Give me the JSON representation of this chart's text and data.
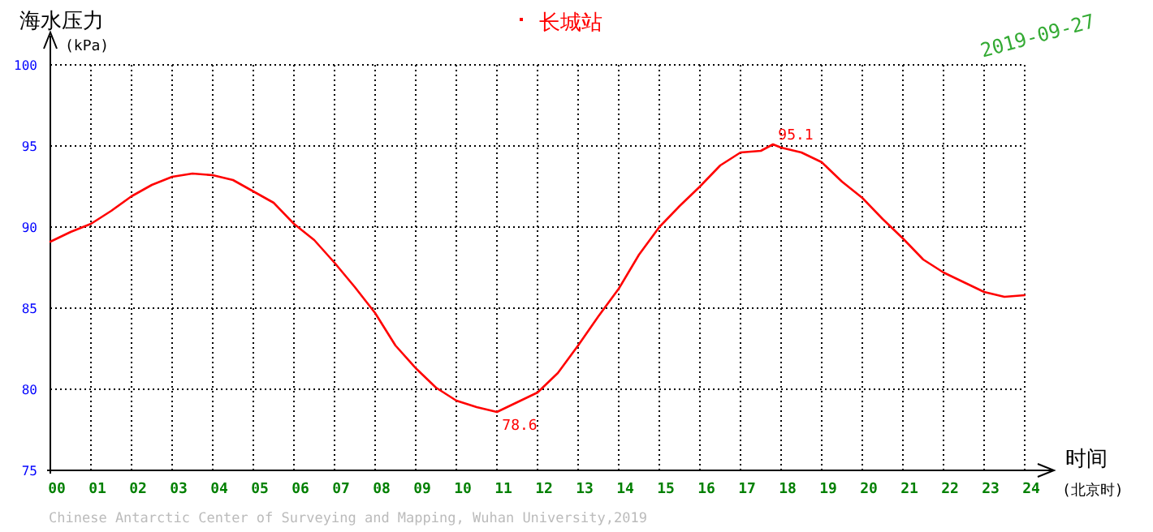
{
  "chart_data": {
    "type": "line",
    "subtitle": "2019-09-27",
    "ylabel": "海水压力",
    "xlabel": "时间",
    "x": [
      0,
      0.5,
      1,
      1.5,
      2,
      2.5,
      3,
      3.5,
      4,
      4.5,
      5,
      5.5,
      6,
      6.5,
      7,
      7.5,
      8,
      8.5,
      9,
      9.5,
      10,
      10.5,
      11,
      11.5,
      12,
      12.5,
      13,
      13.5,
      14,
      14.5,
      15,
      15.5,
      16,
      16.5,
      17,
      17.5,
      17.8,
      18,
      18.5,
      19,
      19.5,
      20,
      20.5,
      21,
      21.5,
      22,
      22.5,
      23,
      23.5,
      24
    ],
    "series": [
      {
        "name": "长城站",
        "color": "#ff0000",
        "values": [
          89.1,
          89.7,
          90.2,
          91.0,
          91.9,
          92.6,
          93.1,
          93.3,
          93.2,
          92.9,
          92.2,
          91.5,
          90.2,
          89.2,
          87.8,
          86.3,
          84.7,
          82.7,
          81.3,
          80.1,
          79.3,
          78.9,
          78.6,
          79.2,
          79.8,
          81.0,
          82.7,
          84.5,
          86.2,
          88.3,
          90.0,
          91.3,
          92.5,
          93.8,
          94.6,
          94.7,
          95.1,
          94.9,
          94.6,
          94.0,
          92.8,
          91.8,
          90.5,
          89.3,
          88.0,
          87.2,
          86.6,
          86.0,
          85.7,
          85.8
        ]
      }
    ],
    "xlim": [
      0,
      24
    ],
    "ylim": [
      75,
      100
    ],
    "xticks": [
      {
        "value": 0,
        "label": "00"
      },
      {
        "value": 1,
        "label": "01"
      },
      {
        "value": 2,
        "label": "02"
      },
      {
        "value": 3,
        "label": "03"
      },
      {
        "value": 4,
        "label": "04"
      },
      {
        "value": 5,
        "label": "05"
      },
      {
        "value": 6,
        "label": "06"
      },
      {
        "value": 7,
        "label": "07"
      },
      {
        "value": 8,
        "label": "08"
      },
      {
        "value": 9,
        "label": "09"
      },
      10,
      11,
      12,
      13,
      14,
      15,
      16,
      17,
      18,
      19,
      20,
      21,
      22,
      23,
      24
    ],
    "yticks": [
      75,
      80,
      85,
      90,
      95,
      100
    ],
    "grid": true,
    "legend": "top",
    "marker": "none",
    "line_style": "solid",
    "annotations": [
      {
        "text": "95.1",
        "x": 17.8,
        "y": 95.1
      },
      {
        "text": "78.6",
        "x": 11,
        "y": 78.6
      },
      "(kPa)",
      "(北京时)",
      "Chinese Antarctic Center of Surveying and Mapping, Wuhan University,2019"
    ]
  }
}
